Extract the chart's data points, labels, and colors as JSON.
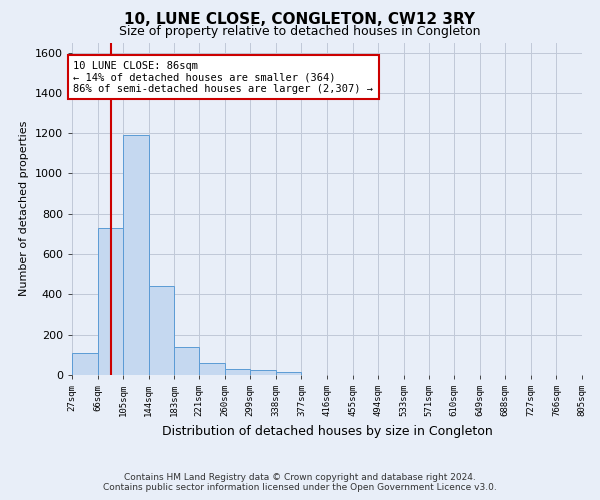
{
  "title": "10, LUNE CLOSE, CONGLETON, CW12 3RY",
  "subtitle": "Size of property relative to detached houses in Congleton",
  "xlabel": "Distribution of detached houses by size in Congleton",
  "ylabel": "Number of detached properties",
  "footer_line1": "Contains HM Land Registry data © Crown copyright and database right 2024.",
  "footer_line2": "Contains public sector information licensed under the Open Government Licence v3.0.",
  "bin_edges": [
    27,
    66,
    105,
    144,
    183,
    221,
    260,
    299,
    338,
    377,
    416,
    455,
    494,
    533,
    571,
    610,
    649,
    688,
    727,
    766,
    805
  ],
  "bin_labels": [
    "27sqm",
    "66sqm",
    "105sqm",
    "144sqm",
    "183sqm",
    "221sqm",
    "260sqm",
    "299sqm",
    "338sqm",
    "377sqm",
    "416sqm",
    "455sqm",
    "494sqm",
    "533sqm",
    "571sqm",
    "610sqm",
    "649sqm",
    "688sqm",
    "727sqm",
    "766sqm",
    "805sqm"
  ],
  "bar_heights": [
    110,
    730,
    1190,
    440,
    140,
    60,
    30,
    25,
    15,
    0,
    0,
    0,
    0,
    0,
    0,
    0,
    0,
    0,
    0,
    0
  ],
  "bar_color": "#c5d8f0",
  "bar_edgecolor": "#5b9bd5",
  "grid_color": "#c0c8d8",
  "background_color": "#e8eef8",
  "red_line_x": 86,
  "annotation_text": "10 LUNE CLOSE: 86sqm\n← 14% of detached houses are smaller (364)\n86% of semi-detached houses are larger (2,307) →",
  "annotation_box_color": "#ffffff",
  "annotation_border_color": "#cc0000",
  "ylim": [
    0,
    1650
  ],
  "yticks": [
    0,
    200,
    400,
    600,
    800,
    1000,
    1200,
    1400,
    1600
  ]
}
